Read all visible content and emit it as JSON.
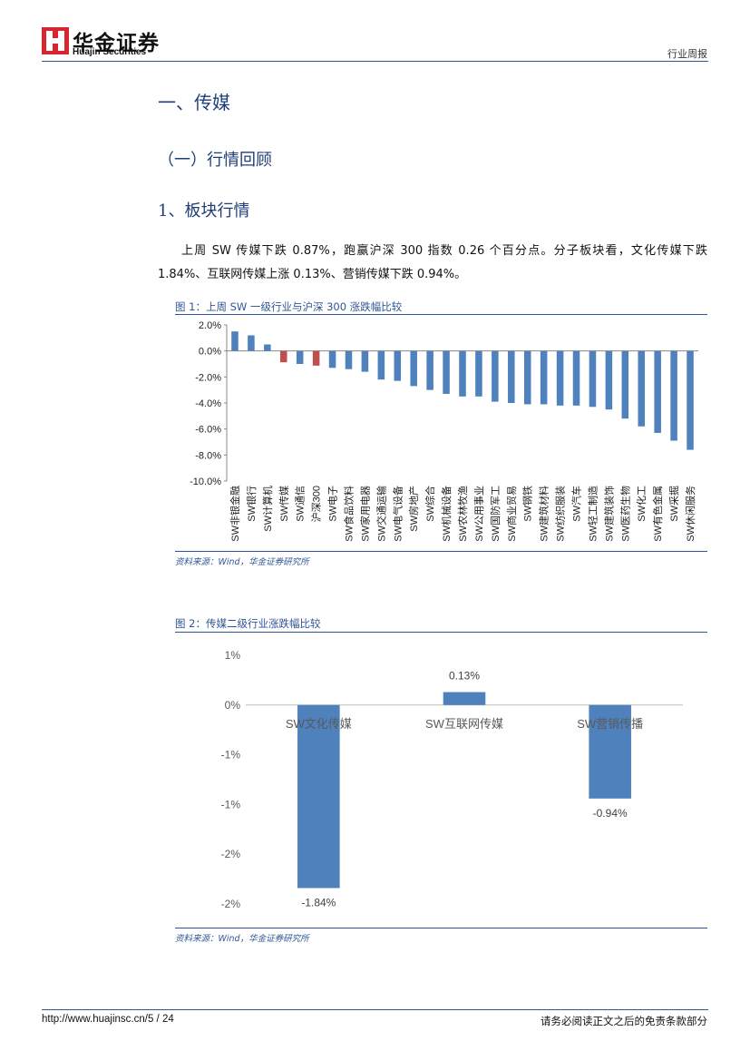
{
  "header": {
    "company_cn": "华金证券",
    "company_en": "Huajin Securities",
    "report_type": "行业周报"
  },
  "sections": {
    "h1": "一、传媒",
    "h2": "（一）行情回顾",
    "h3": "1、板块行情"
  },
  "paragraph": "上周 SW 传媒下跌 0.87%，跑赢沪深 300 指数 0.26 个百分点。分子板块看，文化传媒下跌 1.84%、互联网传媒上涨 0.13%、营销传媒下跌 0.94%。",
  "figure1": {
    "title": "图 1：上周 SW 一级行业与沪深 300 涨跌幅比较",
    "source": "资料来源：Wind，华金证券研究所"
  },
  "figure2": {
    "title": "图 2：传媒二级行业涨跌幅比较",
    "source": "资料来源：Wind，华金证券研究所"
  },
  "chart_data": [
    {
      "type": "bar",
      "categories": [
        "SW非银金融",
        "SW银行",
        "SW计算机",
        "SW传媒",
        "SW通信",
        "沪深300",
        "SW电子",
        "SW食品饮料",
        "SW家用电器",
        "SW交通运输",
        "SW电气设备",
        "SW房地产",
        "SW综合",
        "SW机械设备",
        "SW农林牧渔",
        "SW公用事业",
        "SW国防军工",
        "SW商业贸易",
        "SW钢铁",
        "SW建筑材料",
        "SW纺织服装",
        "SW汽车",
        "SW轻工制造",
        "SW建筑装饰",
        "SW医药生物",
        "SW化工",
        "SW有色金属",
        "SW采掘",
        "SW休闲服务"
      ],
      "values": [
        1.5,
        1.2,
        0.5,
        -0.87,
        -1.0,
        -1.13,
        -1.3,
        -1.4,
        -1.6,
        -2.2,
        -2.3,
        -2.7,
        -3.0,
        -3.3,
        -3.5,
        -3.5,
        -3.9,
        -4.0,
        -4.1,
        -4.1,
        -4.2,
        -4.2,
        -4.3,
        -4.5,
        -5.2,
        -5.8,
        -6.3,
        -6.9,
        -7.6
      ],
      "highlight": [
        "SW传媒",
        "沪深300"
      ],
      "yticks": [
        "2.0%",
        "0.0%",
        "-2.0%",
        "-4.0%",
        "-6.0%",
        "-8.0%",
        "-10.0%"
      ],
      "ylim": [
        -10,
        2
      ],
      "colors": {
        "default": "#4f81bd",
        "highlight": "#c0504d"
      },
      "title": "",
      "xlabel": "",
      "ylabel": ""
    },
    {
      "type": "bar",
      "categories": [
        "SW文化传媒",
        "SW互联网传媒",
        "SW营销传播"
      ],
      "values": [
        -1.84,
        0.13,
        -0.94
      ],
      "value_labels": [
        "-1.84%",
        "0.13%",
        "-0.94%"
      ],
      "yticks": [
        "1%",
        "0%",
        "-1%",
        "-1%",
        "-2%",
        "-2%"
      ],
      "ylim": [
        -2.0,
        0.5
      ],
      "colors": {
        "default": "#4f81bd"
      },
      "title": "",
      "xlabel": "",
      "ylabel": ""
    }
  ],
  "footer": {
    "url_page": "http://www.huajinsc.cn/5 / 24",
    "disclaimer": "请务必阅读正文之后的免责条款部分"
  }
}
